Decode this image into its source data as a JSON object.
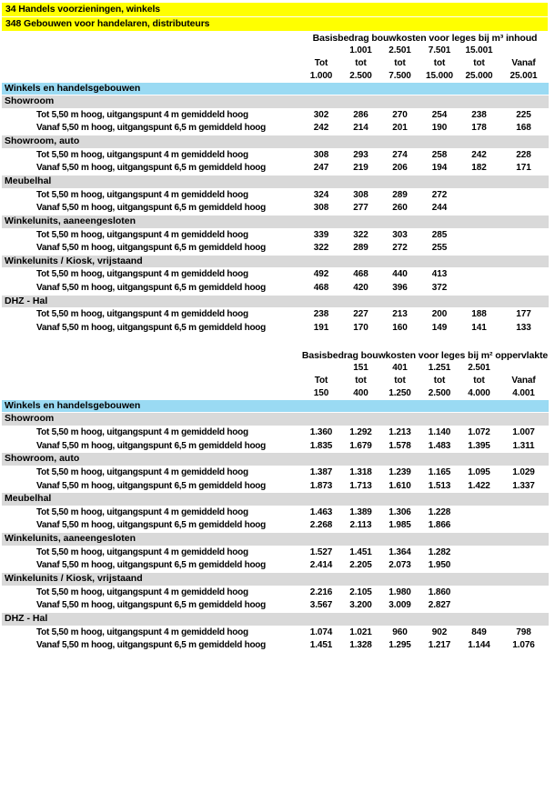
{
  "colors": {
    "title_highlight": "#FFFF00",
    "group_band": "#9ADAF3",
    "section_band": "#D9D9D9",
    "text": "#000000"
  },
  "header": {
    "lines": [
      "34 Handels voorzieningen, winkels",
      "348 Gebouwen voor handelaren, distributeurs"
    ]
  },
  "tables": [
    {
      "title": "Basisbedrag bouwkosten voor leges bij m³ inhoud",
      "col_headers": {
        "upper": [
          "",
          "1.001",
          "2.501",
          "7.501",
          "15.001",
          ""
        ],
        "mid": [
          "Tot",
          "tot",
          "tot",
          "tot",
          "tot",
          "Vanaf"
        ],
        "lower": [
          "1.000",
          "2.500",
          "7.500",
          "15.000",
          "25.000",
          "25.001"
        ]
      },
      "group_header": "Winkels en handelsgebouwen",
      "sections": [
        {
          "name": "Showroom",
          "rows": [
            {
              "label": "Tot 5,50 m hoog, uitgangspunt 4 m gemiddeld hoog",
              "values": [
                "302",
                "286",
                "270",
                "254",
                "238",
                "225"
              ]
            },
            {
              "label": "Vanaf 5,50 m hoog, uitgangspunt 6,5 m gemiddeld hoog",
              "values": [
                "242",
                "214",
                "201",
                "190",
                "178",
                "168"
              ]
            }
          ]
        },
        {
          "name": "Showroom, auto",
          "rows": [
            {
              "label": "Tot 5,50 m hoog, uitgangspunt 4 m gemiddeld hoog",
              "values": [
                "308",
                "293",
                "274",
                "258",
                "242",
                "228"
              ]
            },
            {
              "label": "Vanaf 5,50 m hoog, uitgangspunt 6,5 m gemiddeld hoog",
              "values": [
                "247",
                "219",
                "206",
                "194",
                "182",
                "171"
              ]
            }
          ]
        },
        {
          "name": "Meubelhal",
          "rows": [
            {
              "label": "Tot 5,50 m hoog, uitgangspunt 4 m gemiddeld hoog",
              "values": [
                "324",
                "308",
                "289",
                "272",
                "",
                ""
              ]
            },
            {
              "label": "Vanaf 5,50 m hoog, uitgangspunt 6,5 m gemiddeld hoog",
              "values": [
                "308",
                "277",
                "260",
                "244",
                "",
                ""
              ]
            }
          ]
        },
        {
          "name": "Winkelunits, aaneengesloten",
          "rows": [
            {
              "label": "Tot 5,50 m hoog, uitgangspunt 4 m gemiddeld hoog",
              "values": [
                "339",
                "322",
                "303",
                "285",
                "",
                ""
              ]
            },
            {
              "label": "Vanaf 5,50 m hoog, uitgangspunt 6,5 m gemiddeld hoog",
              "values": [
                "322",
                "289",
                "272",
                "255",
                "",
                ""
              ]
            }
          ]
        },
        {
          "name": "Winkelunits / Kiosk, vrijstaand",
          "rows": [
            {
              "label": "Tot 5,50 m hoog, uitgangspunt 4 m gemiddeld hoog",
              "values": [
                "492",
                "468",
                "440",
                "413",
                "",
                ""
              ]
            },
            {
              "label": "Vanaf 5,50 m hoog, uitgangspunt 6,5 m gemiddeld hoog",
              "values": [
                "468",
                "420",
                "396",
                "372",
                "",
                ""
              ]
            }
          ]
        },
        {
          "name": "DHZ - Hal",
          "rows": [
            {
              "label": "Tot 5,50 m hoog, uitgangspunt 4 m gemiddeld hoog",
              "values": [
                "238",
                "227",
                "213",
                "200",
                "188",
                "177"
              ]
            },
            {
              "label": "Vanaf 5,50 m hoog, uitgangspunt 6,5 m gemiddeld hoog",
              "values": [
                "191",
                "170",
                "160",
                "149",
                "141",
                "133"
              ]
            }
          ]
        }
      ]
    },
    {
      "title": "Basisbedrag bouwkosten voor leges bij m² oppervlakte",
      "col_headers": {
        "upper": [
          "",
          "151",
          "401",
          "1.251",
          "2.501",
          ""
        ],
        "mid": [
          "Tot",
          "tot",
          "tot",
          "tot",
          "tot",
          "Vanaf"
        ],
        "lower": [
          "150",
          "400",
          "1.250",
          "2.500",
          "4.000",
          "4.001"
        ]
      },
      "group_header": "Winkels en handelsgebouwen",
      "sections": [
        {
          "name": "Showroom",
          "rows": [
            {
              "label": "Tot 5,50 m hoog, uitgangspunt 4 m gemiddeld hoog",
              "values": [
                "1.360",
                "1.292",
                "1.213",
                "1.140",
                "1.072",
                "1.007"
              ]
            },
            {
              "label": "Vanaf 5,50 m hoog, uitgangspunt 6,5 m gemiddeld hoog",
              "values": [
                "1.835",
                "1.679",
                "1.578",
                "1.483",
                "1.395",
                "1.311"
              ]
            }
          ]
        },
        {
          "name": "Showroom, auto",
          "rows": [
            {
              "label": "Tot 5,50 m hoog, uitgangspunt 4 m gemiddeld hoog",
              "values": [
                "1.387",
                "1.318",
                "1.239",
                "1.165",
                "1.095",
                "1.029"
              ]
            },
            {
              "label": "Vanaf 5,50 m hoog, uitgangspunt 6,5 m gemiddeld hoog",
              "values": [
                "1.873",
                "1.713",
                "1.610",
                "1.513",
                "1.422",
                "1.337"
              ]
            }
          ]
        },
        {
          "name": "Meubelhal",
          "rows": [
            {
              "label": "Tot 5,50 m hoog, uitgangspunt 4 m gemiddeld hoog",
              "values": [
                "1.463",
                "1.389",
                "1.306",
                "1.228",
                "",
                ""
              ]
            },
            {
              "label": "Vanaf 5,50 m hoog, uitgangspunt 6,5 m gemiddeld hoog",
              "values": [
                "2.268",
                "2.113",
                "1.985",
                "1.866",
                "",
                ""
              ]
            }
          ]
        },
        {
          "name": "Winkelunits, aaneengesloten",
          "rows": [
            {
              "label": "Tot 5,50 m hoog, uitgangspunt 4 m gemiddeld hoog",
              "values": [
                "1.527",
                "1.451",
                "1.364",
                "1.282",
                "",
                ""
              ]
            },
            {
              "label": "Vanaf 5,50 m hoog, uitgangspunt 6,5 m gemiddeld hoog",
              "values": [
                "2.414",
                "2.205",
                "2.073",
                "1.950",
                "",
                ""
              ]
            }
          ]
        },
        {
          "name": "Winkelunits / Kiosk, vrijstaand",
          "rows": [
            {
              "label": "Tot 5,50 m hoog, uitgangspunt 4 m gemiddeld hoog",
              "values": [
                "2.216",
                "2.105",
                "1.980",
                "1.860",
                "",
                ""
              ]
            },
            {
              "label": "Vanaf 5,50 m hoog, uitgangspunt 6,5 m gemiddeld hoog",
              "values": [
                "3.567",
                "3.200",
                "3.009",
                "2.827",
                "",
                ""
              ]
            }
          ]
        },
        {
          "name": "DHZ - Hal",
          "rows": [
            {
              "label": "Tot 5,50 m hoog, uitgangspunt 4 m gemiddeld hoog",
              "values": [
                "1.074",
                "1.021",
                "960",
                "902",
                "849",
                "798"
              ]
            },
            {
              "label": "Vanaf 5,50 m hoog, uitgangspunt 6,5 m gemiddeld hoog",
              "values": [
                "1.451",
                "1.328",
                "1.295",
                "1.217",
                "1.144",
                "1.076"
              ]
            }
          ]
        }
      ]
    }
  ]
}
